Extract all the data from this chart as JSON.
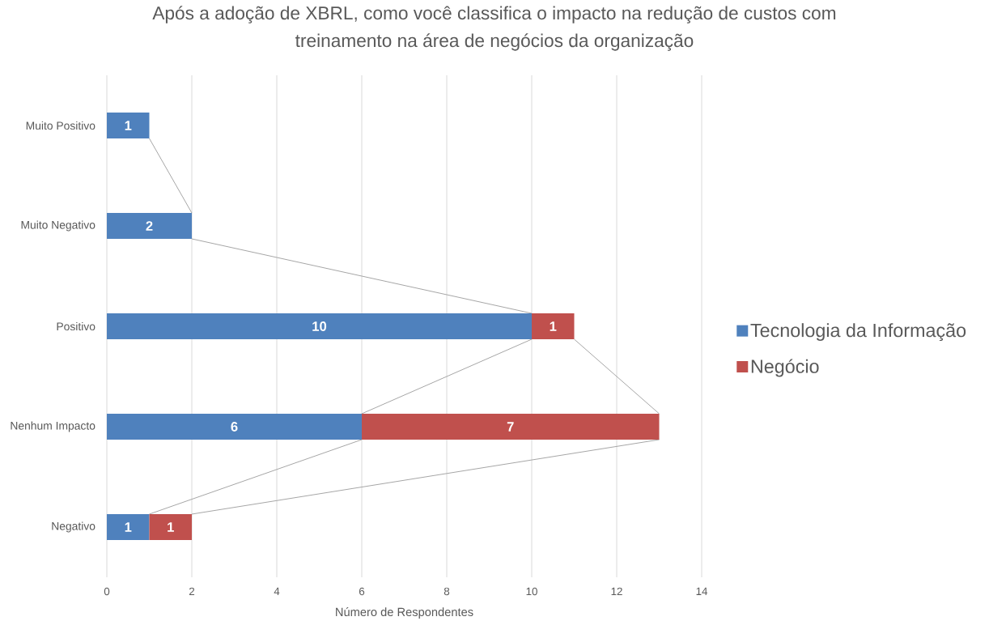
{
  "chart_data": {
    "type": "bar",
    "orientation": "horizontal",
    "stacked": true,
    "title": "Após a adoção de XBRL, como você classifica o impacto na redução de custos com treinamento na área de negócios da organização",
    "xlabel": "Número de Respondentes",
    "categories": [
      "Muito Positivo",
      "Muito Negativo",
      "Positivo",
      "Nenhum Impacto",
      "Negativo"
    ],
    "series": [
      {
        "name": "Tecnologia da Informação",
        "color": "#4f81bd",
        "values": [
          1,
          2,
          10,
          6,
          1
        ]
      },
      {
        "name": "Negócio",
        "color": "#c0504d",
        "values": [
          null,
          null,
          1,
          7,
          1
        ]
      }
    ],
    "xlim": [
      0,
      14
    ],
    "xticks": [
      0,
      2,
      4,
      6,
      8,
      10,
      12,
      14
    ],
    "grid": "x",
    "legend": "right",
    "data_labels": true
  }
}
